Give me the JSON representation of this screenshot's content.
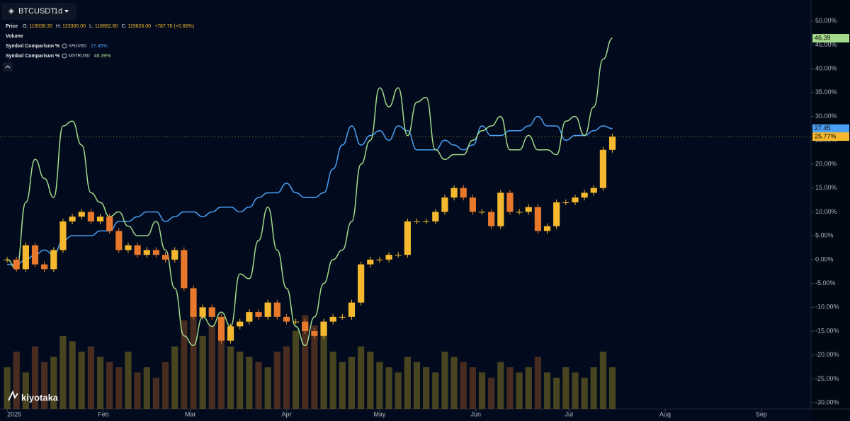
{
  "header": {
    "symbol": "BTCUSDT",
    "interval": "1d",
    "price_label": "Price",
    "ohlc": [
      {
        "label": "O:",
        "value": "119038.30"
      },
      {
        "label": "H:",
        "value": "123300.00"
      },
      {
        "label": "L:",
        "value": "118862.60"
      },
      {
        "label": "C:",
        "value": "119826.00"
      }
    ],
    "change": "+787.70 (+0.66%)",
    "volume_label": "Volume",
    "comparisons": [
      {
        "label": "Symbol Comparison %",
        "symbol": "XAUUSD",
        "value": "27.45%"
      },
      {
        "label": "Symbol Comparison %",
        "symbol": "MSTRUSD",
        "value": "46.39%"
      }
    ]
  },
  "logo": "kiyotaka",
  "chart_data": {
    "type": "candlestick",
    "x": [
      0,
      3,
      6,
      9,
      12,
      15,
      18,
      21,
      24,
      27,
      30,
      33,
      36,
      39,
      42,
      45,
      48,
      51,
      54,
      57,
      60,
      63,
      66,
      69,
      72,
      75,
      78,
      81,
      84,
      87,
      90,
      93,
      96,
      99,
      102,
      105,
      108,
      111,
      114,
      117,
      120,
      123,
      126,
      129,
      132,
      135,
      138,
      141,
      144,
      147,
      150,
      153,
      156,
      159,
      162,
      165,
      168,
      171,
      174,
      177,
      180,
      183,
      186,
      189,
      192,
      195
    ],
    "close": [
      0,
      -2,
      3,
      -1,
      -2,
      2,
      8,
      9,
      10,
      8,
      9,
      6,
      2,
      3,
      1,
      2,
      1,
      0,
      2,
      -6,
      -12,
      -10,
      -12,
      -17,
      -14,
      -13,
      -11,
      -12,
      -9,
      -12,
      -13,
      -13,
      -15,
      -16,
      -13,
      -12,
      -12,
      -9,
      -1,
      0,
      0,
      1,
      1,
      8,
      8,
      8,
      10,
      13,
      15,
      13,
      10,
      10,
      7,
      14,
      10,
      10,
      11,
      6,
      7,
      12,
      12,
      13,
      14,
      15,
      23,
      25.77
    ],
    "up_color": "#f5b82e",
    "down_color": "#e8782c",
    "series": [
      {
        "name": "XAUUSD",
        "color": "#4a9ff5",
        "last_label": "27.45",
        "values": [
          -1,
          -1,
          0,
          1,
          2,
          1,
          4,
          5,
          5,
          5,
          6,
          6,
          8,
          8,
          9,
          10,
          10,
          8,
          9,
          10,
          10,
          9,
          10,
          11,
          11,
          10,
          11,
          13,
          14,
          14,
          16,
          14,
          13,
          13,
          14,
          19,
          24,
          28,
          24,
          26,
          27,
          25,
          28,
          27,
          23,
          23,
          23,
          25,
          24,
          23,
          24,
          28,
          26,
          26,
          27,
          27,
          28,
          30,
          28,
          28,
          25,
          26,
          26,
          27,
          28,
          27.45
        ]
      },
      {
        "name": "MSTRUSD",
        "color": "#a3d98a",
        "last_label": "46.39",
        "values": [
          0,
          -2,
          12,
          21,
          17,
          13,
          28,
          29,
          24,
          14,
          12,
          9,
          10,
          7,
          5,
          5,
          8,
          2,
          -6,
          -16,
          -18,
          -12,
          -14,
          -11,
          -14,
          -3,
          -4,
          4,
          11,
          2,
          -6,
          -14,
          -18,
          -12,
          -5,
          0,
          2,
          8,
          20,
          25,
          36,
          32,
          36,
          26,
          33,
          34,
          23,
          21,
          22,
          22,
          25,
          27,
          28,
          30,
          23,
          23,
          26,
          23,
          23,
          22,
          29,
          30,
          26,
          32,
          42,
          46.39
        ]
      }
    ],
    "last_label": "25.77%",
    "volume": [
      40,
      55,
      35,
      60,
      45,
      50,
      70,
      65,
      55,
      60,
      50,
      45,
      40,
      55,
      35,
      40,
      30,
      45,
      60,
      85,
      95,
      70,
      80,
      75,
      60,
      55,
      50,
      45,
      40,
      55,
      60,
      75,
      90,
      80,
      70,
      55,
      45,
      50,
      60,
      55,
      45,
      40,
      35,
      50,
      45,
      40,
      35,
      55,
      50,
      45,
      40,
      35,
      30,
      45,
      40,
      35,
      40,
      50,
      35,
      30,
      40,
      35,
      30,
      40,
      55,
      40
    ],
    "xlim": [
      -2.3,
      259
    ],
    "xticks": [
      {
        "value": 0,
        "label": "2025"
      },
      {
        "value": 31,
        "label": "Feb"
      },
      {
        "value": 59,
        "label": "Mar"
      },
      {
        "value": 90,
        "label": "Apr"
      },
      {
        "value": 120,
        "label": "May"
      },
      {
        "value": 151,
        "label": "Jun"
      },
      {
        "value": 181,
        "label": "Jul"
      },
      {
        "value": 212,
        "label": "Aug"
      },
      {
        "value": 243,
        "label": "Sep"
      }
    ],
    "ylim": [
      -31.3,
      54.4
    ],
    "yticks": [
      {
        "value": -30,
        "label": "-30.00%"
      },
      {
        "value": -25,
        "label": "-25.00%"
      },
      {
        "value": -20,
        "label": "-20.00%"
      },
      {
        "value": -15,
        "label": "-15.00%"
      },
      {
        "value": -10,
        "label": "-10.00%"
      },
      {
        "value": -5,
        "label": "-5.00%"
      },
      {
        "value": 0,
        "label": "0.00%"
      },
      {
        "value": 5,
        "label": "5.00%"
      },
      {
        "value": 10,
        "label": "10.00%"
      },
      {
        "value": 15,
        "label": "15.00%"
      },
      {
        "value": 20,
        "label": "20.00%"
      },
      {
        "value": 25,
        "label": "25.00%"
      },
      {
        "value": 30,
        "label": "30.00%"
      },
      {
        "value": 35,
        "label": "35.00%"
      },
      {
        "value": 40,
        "label": "40.00%"
      },
      {
        "value": 45,
        "label": "45.00%"
      },
      {
        "value": 50,
        "label": "50.00%"
      }
    ]
  }
}
